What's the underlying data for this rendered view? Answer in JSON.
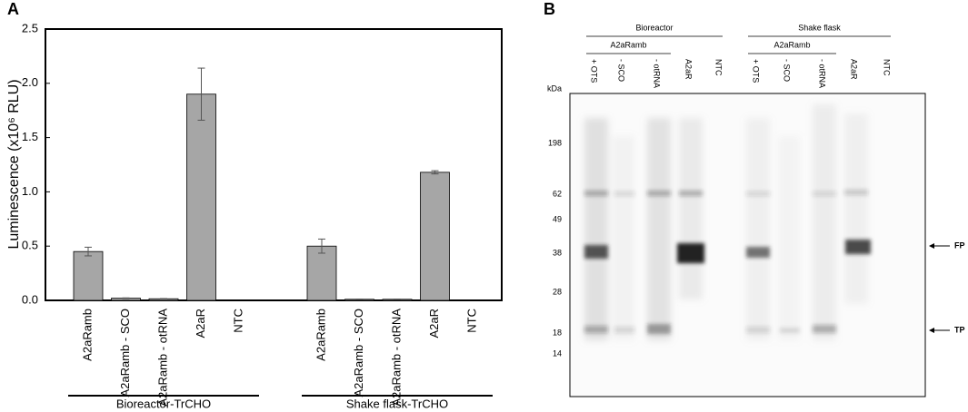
{
  "panel_labels": [
    "A",
    "B"
  ],
  "chart_data": {
    "type": "bar",
    "ylabel": "Luminescence (x10⁶ RLU)",
    "categories": [
      "A2aRamb",
      "A2aRamb - SCO",
      "A2aRamb - otRNA",
      "A2aR",
      "NTC",
      null,
      "A2aRamb",
      "A2aRamb - SCO",
      "A2aRamb - otRNA",
      "A2aR",
      "NTC"
    ],
    "values": [
      0.45,
      0.02,
      0.015,
      1.9,
      0,
      null,
      0.5,
      0.01,
      0.01,
      1.18,
      0
    ],
    "errors": [
      0.04,
      0.003,
      0.002,
      0.24,
      0,
      null,
      0.065,
      0.002,
      0.002,
      0.015,
      0
    ],
    "groups": [
      "Bioreactor-TrCHO",
      "Shake flask-TrCHO"
    ],
    "color": "#a6a6a6",
    "ylim": [
      0,
      2.5
    ],
    "yticks": [
      {
        "value": 0,
        "label": "0.0"
      },
      0.5,
      {
        "value": 1,
        "label": "1.0"
      },
      1.5,
      {
        "value": 2,
        "label": "2.0"
      },
      2.5
    ]
  },
  "gel": {
    "groups": [
      {
        "label": "Bioreactor",
        "sub": "A2aRamb"
      },
      {
        "label": "Shake flask",
        "sub": "A2aRamb"
      }
    ],
    "lanes": [
      "+ OTS",
      "- SCO",
      "- otRNA",
      "A2aR",
      "NTC",
      "+ OTS",
      "- SCO",
      "- otRNA",
      "A2aR",
      "NTC"
    ],
    "unit": "kDa",
    "markers": [
      "198",
      "62",
      "49",
      "38",
      "28",
      "18",
      "14"
    ],
    "arrows": [
      "FP",
      "TP"
    ]
  }
}
